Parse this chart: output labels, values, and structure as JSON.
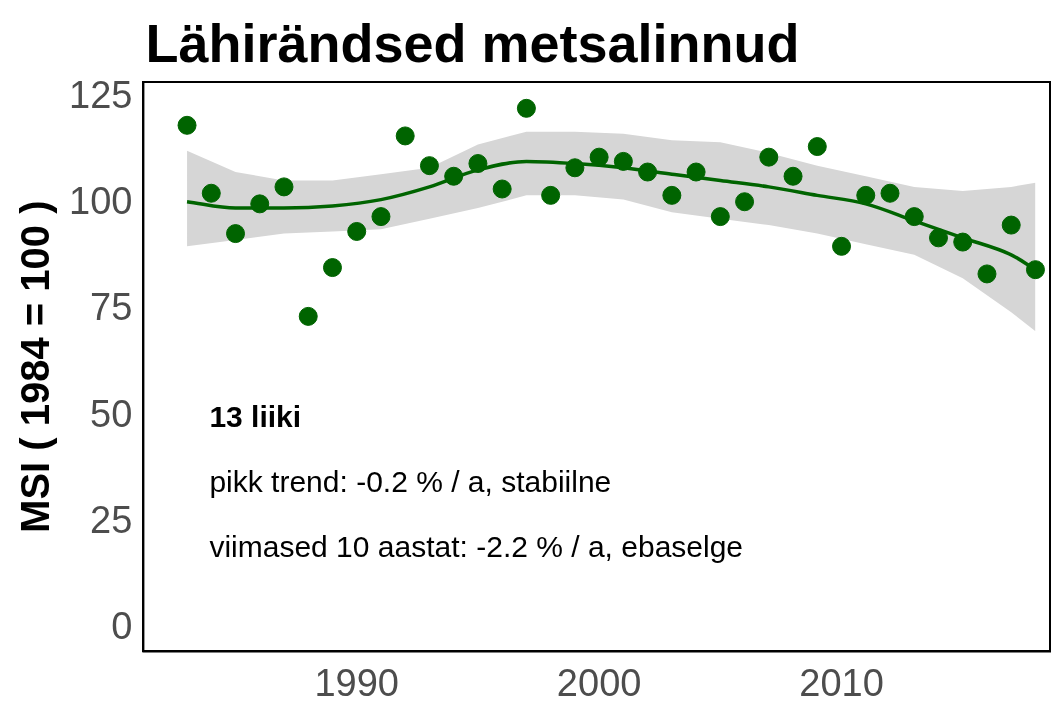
{
  "chart_data": {
    "type": "scatter",
    "title": "Lähirändsed metsalinnud",
    "ylabel": "MSI ( 1984 = 100 )",
    "xlim": [
      1981.2,
      2018.6
    ],
    "xticks": [
      1990,
      2000,
      2010
    ],
    "ylim": [
      -5.4,
      128.7
    ],
    "yticks": [
      0,
      25,
      50,
      75,
      100,
      125
    ],
    "grid": false,
    "legend": false,
    "annotations": [
      "13 liiki",
      "pikk trend: -0.2 % / a, stabiilne",
      "viimased 10 aastat: -2.2 % / a, ebaselge"
    ],
    "series": [
      {
        "marker": "circle",
        "color": "#006400",
        "x": [
          1983,
          1984,
          1985,
          1986,
          1987,
          1988,
          1989,
          1990,
          1991,
          1992,
          1993,
          1994,
          1995,
          1996,
          1997,
          1998,
          1999,
          2000,
          2001,
          2002,
          2003,
          2004,
          2005,
          2006,
          2007,
          2008,
          2009,
          2010,
          2011,
          2012,
          2013,
          2014,
          2015,
          2016,
          2017,
          2018
        ],
        "values": [
          118.5,
          102.5,
          93,
          100,
          104,
          73.5,
          85,
          93.5,
          97,
          116,
          109,
          106.5,
          109.5,
          103.5,
          122.5,
          102,
          108.5,
          111,
          110,
          107.5,
          102,
          107.5,
          97,
          100.5,
          111,
          106.5,
          113.5,
          90,
          102,
          102.5,
          97,
          92,
          91,
          83.5,
          95,
          84.5
        ]
      },
      {
        "type": "line",
        "color": "#006400",
        "x": [
          1983,
          1985,
          1987,
          1989,
          1991,
          1993,
          1995,
          1997,
          1999,
          2001,
          2003,
          2005,
          2007,
          2009,
          2011,
          2013,
          2015,
          2017,
          2018
        ],
        "values": [
          100.5,
          99,
          99,
          99.5,
          101,
          104,
          108,
          110,
          109.5,
          108.5,
          107,
          105.5,
          104,
          102,
          100,
          96,
          92,
          88,
          84.5
        ],
        "lower": [
          90,
          91.5,
          93,
          93.5,
          94,
          96.5,
          99,
          102,
          102,
          101,
          98,
          96.5,
          95,
          93,
          90.5,
          88,
          82.5,
          74.5,
          70
        ],
        "upper": [
          112.5,
          107.5,
          105.5,
          105.5,
          107,
          108.5,
          114,
          117,
          117,
          116.5,
          115,
          114.5,
          112,
          109,
          106.5,
          104,
          103,
          104,
          105
        ]
      }
    ]
  }
}
